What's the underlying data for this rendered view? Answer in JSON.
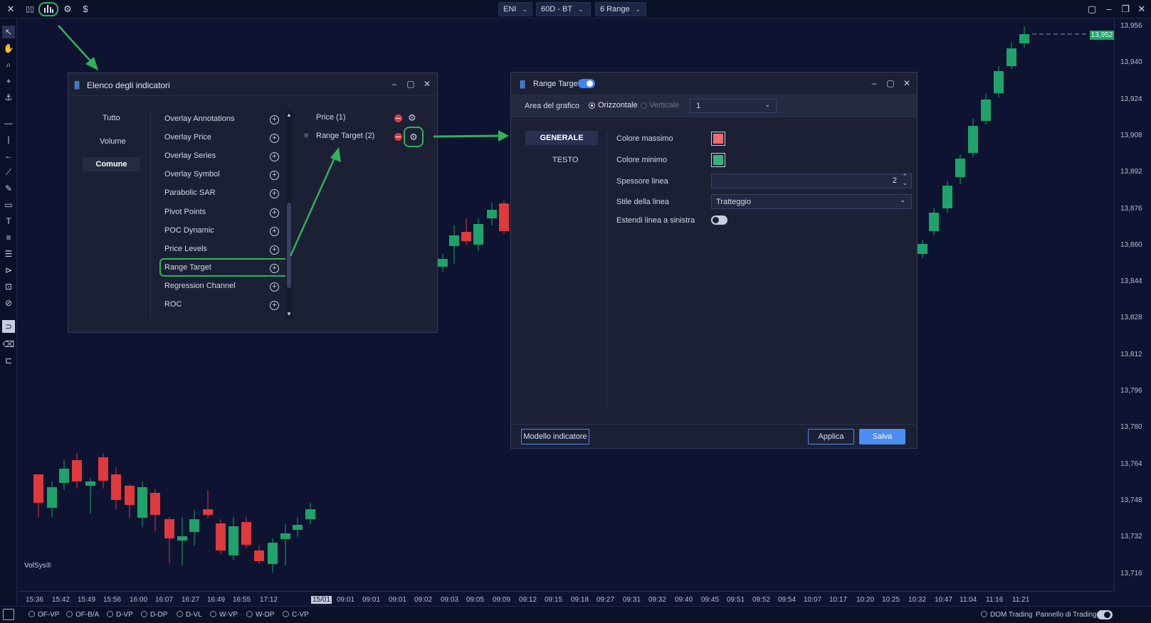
{
  "topbar": {
    "close_icon": "close-icon",
    "symbol": "ENI",
    "timeframe": "60D - BT",
    "range": "6 Range",
    "dollar": "$"
  },
  "chart": {
    "watermark": "VolSys®",
    "last_price": "13,952",
    "y_ticks": [
      "13,956",
      "13,940",
      "13,924",
      "13,908",
      "13,892",
      "13,876",
      "13,860",
      "13,844",
      "13,828",
      "13,812",
      "13,796",
      "13,780",
      "13,764",
      "13,748",
      "13,732",
      "13,716"
    ],
    "x_ticks": [
      "15:36",
      "15:42",
      "15:49",
      "15:56",
      "16:00",
      "16:07",
      "16:27",
      "16:49",
      "16:55",
      "17:12",
      "15/01",
      "09:01",
      "09:01",
      "09:01",
      "09:02",
      "09:03",
      "09:05",
      "09:09",
      "09:12",
      "09:15",
      "09:18",
      "09:27",
      "09:31",
      "09:32",
      "09:40",
      "09:45",
      "09:51",
      "09:52",
      "09:54",
      "10:07",
      "10:17",
      "10:20",
      "10:25",
      "10:32",
      "10:47",
      "11:04",
      "11:16",
      "11:21"
    ],
    "colors": {
      "up": "#1fa36a",
      "down": "#e0393e",
      "background": "#0d1330"
    }
  },
  "bottom": {
    "items": [
      "OF-VP",
      "OF-B/A",
      "D-VP",
      "D-DP",
      "D-VL",
      "W-VP",
      "W-DP",
      "C-VP"
    ],
    "dom_trading": "DOM Trading",
    "pannello": "Pannello di Trading"
  },
  "indicator_list": {
    "title": "Elenco degli indicatori",
    "categories": [
      "Tutto",
      "Volume",
      "Comune"
    ],
    "selected_category": "Comune",
    "items": [
      "Overlay Annotations",
      "Overlay Price",
      "Overlay Series",
      "Overlay Symbol",
      "Parabolic SAR",
      "Pivot Points",
      "POC Dynamic",
      "Price Levels",
      "Range Target",
      "Regression Channel",
      "ROC"
    ],
    "highlighted": "Range Target",
    "active": [
      "Price (1)",
      "Range Target (2)"
    ]
  },
  "range_target": {
    "title": "Range Target",
    "area_label": "Area del grafico",
    "orient_h": "Orizzontale",
    "orient_v": "Verticale",
    "area_value": "1",
    "tabs": [
      "GENERALE",
      "TESTO"
    ],
    "colore_massimo": "Colore massimo",
    "colore_minimo": "Colore minimo",
    "spessore": "Spessore linea",
    "spessore_value": "2",
    "stile": "Stile della linea",
    "stile_value": "Tratteggio",
    "estendi": "Estendi linea a sinistra",
    "max_color": "#ef6d6d",
    "min_color": "#3bb07e",
    "modello": "Modello indicatore",
    "applica": "Applica",
    "salva": "Salva"
  }
}
